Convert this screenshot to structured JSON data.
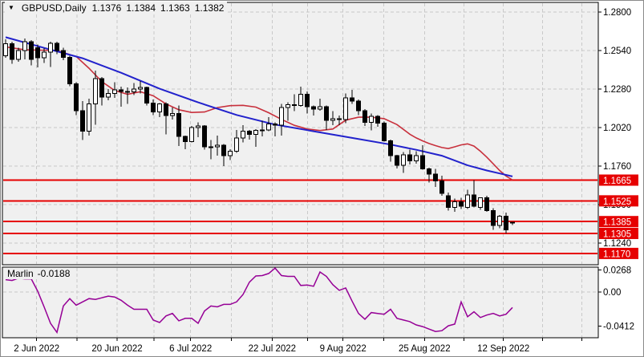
{
  "title_bar": {
    "collapse_icon": "▼",
    "symbol": "GBPUSD,Daily",
    "open": "1.1376",
    "high": "1.1384",
    "low": "1.1363",
    "close": "1.1382"
  },
  "indicator": {
    "name": "Marlin",
    "current_value": "-0.0188",
    "axis_labels": [
      "0.0268",
      "0.00",
      "-0.0412"
    ]
  },
  "colors": {
    "panel_bg": "#f0f0f0",
    "axis_bg": "#ffffff",
    "grid": "#c9c9c9",
    "border": "#000000",
    "text": "#000000",
    "candle_up_fill": "#ffffff",
    "candle_down_fill": "#000000",
    "candle_stroke": "#000000",
    "ma_slow_blue": "#2222cc",
    "ma_fast_red": "#c8303c",
    "level_line": "#e60000",
    "level_label_bg": "#e60000",
    "level_label_text": "#ffffff",
    "oscillator_line": "#960096"
  },
  "chart_data": {
    "type": "candlestick",
    "symbol": "GBPUSD",
    "timeframe": "Daily",
    "title": "GBPUSD,Daily  1.1376 1.1384 1.1363 1.1382",
    "grid": "dashed",
    "ylim": [
      1.114,
      1.287
    ],
    "y_tick_labels": [
      "1.2800",
      "1.2540",
      "1.2280",
      "1.2020",
      "1.1760",
      "1.1500",
      "1.1240"
    ],
    "x_tick_labels": [
      "2 Jun 2022",
      "20 Jun 2022",
      "6 Jul 2022",
      "22 Jul 2022",
      "9 Aug 2022",
      "25 Aug 2022",
      "12 Sep 2022"
    ],
    "support_resistance_levels": [
      "1.1665",
      "1.1525",
      "1.1385",
      "1.1305",
      "1.1170"
    ],
    "candles": [
      [
        1.2505,
        1.2615,
        1.249,
        1.2585
      ],
      [
        1.2585,
        1.26,
        1.245,
        1.248
      ],
      [
        1.248,
        1.256,
        1.2465,
        1.254
      ],
      [
        1.254,
        1.262,
        1.248,
        1.26
      ],
      [
        1.26,
        1.261,
        1.244,
        1.248
      ],
      [
        1.256,
        1.258,
        1.2425,
        1.249
      ],
      [
        1.249,
        1.2555,
        1.2455,
        1.253
      ],
      [
        1.253,
        1.26,
        1.243,
        1.259
      ],
      [
        1.259,
        1.26,
        1.2515,
        1.254
      ],
      [
        1.254,
        1.256,
        1.2475,
        1.2495
      ],
      [
        1.2495,
        1.2505,
        1.23,
        1.2315
      ],
      [
        1.2315,
        1.2325,
        1.2105,
        1.2135
      ],
      [
        1.2135,
        1.22,
        1.1935,
        1.1995
      ],
      [
        1.1995,
        1.2215,
        1.1965,
        1.218
      ],
      [
        1.218,
        1.2405,
        1.204,
        1.235
      ],
      [
        1.235,
        1.236,
        1.217,
        1.2225
      ],
      [
        1.2225,
        1.228,
        1.2205,
        1.225
      ],
      [
        1.225,
        1.2325,
        1.222,
        1.2275
      ],
      [
        1.2275,
        1.2295,
        1.216,
        1.2265
      ],
      [
        1.2265,
        1.229,
        1.218,
        1.226
      ],
      [
        1.226,
        1.232,
        1.224,
        1.228
      ],
      [
        1.228,
        1.2335,
        1.225,
        1.229
      ],
      [
        1.229,
        1.2295,
        1.217,
        1.2185
      ],
      [
        1.2185,
        1.221,
        1.2105,
        1.2125
      ],
      [
        1.2125,
        1.2185,
        1.209,
        1.218
      ],
      [
        1.218,
        1.219,
        1.1975,
        1.21
      ],
      [
        1.21,
        1.2155,
        1.2075,
        1.2115
      ],
      [
        1.2115,
        1.217,
        1.1895,
        1.196
      ],
      [
        1.196,
        1.1965,
        1.1875,
        1.1925
      ],
      [
        1.1925,
        1.203,
        1.192,
        1.202
      ],
      [
        1.202,
        1.2055,
        1.1955,
        1.203
      ],
      [
        1.203,
        1.2035,
        1.187,
        1.189
      ],
      [
        1.189,
        1.1935,
        1.1805,
        1.189
      ],
      [
        1.189,
        1.1965,
        1.183,
        1.19
      ],
      [
        1.19,
        1.191,
        1.176,
        1.183
      ],
      [
        1.183,
        1.1875,
        1.18,
        1.186
      ],
      [
        1.186,
        1.2005,
        1.185,
        1.195
      ],
      [
        1.195,
        1.2035,
        1.192,
        1.1995
      ],
      [
        1.1995,
        1.2005,
        1.194,
        1.1975
      ],
      [
        1.1975,
        1.201,
        1.189,
        1.2
      ],
      [
        1.2,
        1.2065,
        1.196,
        1.2005
      ],
      [
        1.2005,
        1.209,
        1.1995,
        1.2045
      ],
      [
        1.2045,
        1.2055,
        1.196,
        1.2035
      ],
      [
        1.2035,
        1.218,
        1.1965,
        1.2155
      ],
      [
        1.2155,
        1.219,
        1.2065,
        1.2175
      ],
      [
        1.2175,
        1.2245,
        1.213,
        1.217
      ],
      [
        1.217,
        1.2295,
        1.216,
        1.2245
      ],
      [
        1.2245,
        1.2265,
        1.2115,
        1.216
      ],
      [
        1.216,
        1.217,
        1.21,
        1.2145
      ],
      [
        1.2145,
        1.2215,
        1.2135,
        1.216
      ],
      [
        1.216,
        1.217,
        1.2005,
        1.207
      ],
      [
        1.207,
        1.213,
        1.2035,
        1.208
      ],
      [
        1.208,
        1.21,
        1.2035,
        1.2075
      ],
      [
        1.2075,
        1.225,
        1.205,
        1.222
      ],
      [
        1.222,
        1.2275,
        1.218,
        1.22
      ],
      [
        1.22,
        1.221,
        1.2105,
        1.2135
      ],
      [
        1.2135,
        1.2145,
        1.203,
        1.2055
      ],
      [
        1.2055,
        1.2115,
        1.2,
        1.2095
      ],
      [
        1.2095,
        1.2105,
        1.2025,
        1.205
      ],
      [
        1.205,
        1.206,
        1.1925,
        1.193
      ],
      [
        1.193,
        1.194,
        1.179,
        1.183
      ],
      [
        1.183,
        1.1835,
        1.1745,
        1.1765
      ],
      [
        1.1765,
        1.1855,
        1.1715,
        1.1835
      ],
      [
        1.1835,
        1.187,
        1.177,
        1.1795
      ],
      [
        1.1795,
        1.186,
        1.1775,
        1.183
      ],
      [
        1.183,
        1.19,
        1.1735,
        1.174
      ],
      [
        1.174,
        1.175,
        1.165,
        1.1705
      ],
      [
        1.1705,
        1.174,
        1.162,
        1.166
      ],
      [
        1.166,
        1.1695,
        1.156,
        1.1575
      ],
      [
        1.156,
        1.158,
        1.146,
        1.148
      ],
      [
        1.148,
        1.154,
        1.145,
        1.152
      ],
      [
        1.152,
        1.1545,
        1.147,
        1.149
      ],
      [
        1.148,
        1.16,
        1.147,
        1.1565
      ],
      [
        1.1565,
        1.1665,
        1.148,
        1.149
      ],
      [
        1.148,
        1.155,
        1.1465,
        1.1545
      ],
      [
        1.1545,
        1.156,
        1.145,
        1.146
      ],
      [
        1.146,
        1.1475,
        1.133,
        1.136
      ],
      [
        1.136,
        1.143,
        1.134,
        1.142
      ],
      [
        1.142,
        1.1445,
        1.1305,
        1.133
      ],
      [
        1.1376,
        1.1384,
        1.1363,
        1.1382
      ]
    ],
    "series": [
      {
        "name": "MA slow (blue)",
        "points": [
          [
            0,
            1.263
          ],
          [
            6,
            1.2558
          ],
          [
            12,
            1.2488
          ],
          [
            18,
            1.239
          ],
          [
            24,
            1.2282
          ],
          [
            30,
            1.219
          ],
          [
            36,
            1.2105
          ],
          [
            42,
            1.204
          ],
          [
            48,
            1.1995
          ],
          [
            54,
            1.195
          ],
          [
            60,
            1.1905
          ],
          [
            64,
            1.187
          ],
          [
            68,
            1.183
          ],
          [
            72,
            1.1765
          ],
          [
            75,
            1.173
          ],
          [
            77,
            1.171
          ],
          [
            79,
            1.169
          ]
        ]
      },
      {
        "name": "MA fast (red)",
        "points": [
          [
            0,
            1.2565
          ],
          [
            3,
            1.2545
          ],
          [
            8,
            1.254
          ],
          [
            11,
            1.25
          ],
          [
            13,
            1.242
          ],
          [
            15,
            1.233
          ],
          [
            17,
            1.227
          ],
          [
            19,
            1.2245
          ],
          [
            21,
            1.2262
          ],
          [
            23,
            1.2235
          ],
          [
            25,
            1.218
          ],
          [
            27,
            1.214
          ],
          [
            29,
            1.2122
          ],
          [
            31,
            1.2125
          ],
          [
            33,
            1.2155
          ],
          [
            35,
            1.2168
          ],
          [
            37,
            1.217
          ],
          [
            39,
            1.2158
          ],
          [
            41,
            1.212
          ],
          [
            43,
            1.2075
          ],
          [
            45,
            1.2035
          ],
          [
            47,
            1.201
          ],
          [
            49,
            1.2
          ],
          [
            51,
            1.201
          ],
          [
            53,
            1.207
          ],
          [
            55,
            1.209
          ],
          [
            57,
            1.209
          ],
          [
            59,
            1.208
          ],
          [
            61,
            1.204
          ],
          [
            63,
            1.1975
          ],
          [
            64,
            1.195
          ],
          [
            65,
            1.193
          ],
          [
            66,
            1.1912
          ],
          [
            67,
            1.1898
          ],
          [
            68,
            1.1885
          ],
          [
            69,
            1.1878
          ],
          [
            70,
            1.189
          ],
          [
            71,
            1.1903
          ],
          [
            72,
            1.191
          ],
          [
            73,
            1.1895
          ],
          [
            74,
            1.186
          ],
          [
            75,
            1.182
          ],
          [
            76,
            1.1775
          ],
          [
            77,
            1.173
          ],
          [
            78,
            1.1692
          ],
          [
            79,
            1.1666
          ]
        ]
      }
    ],
    "oscillator": {
      "name": "Marlin",
      "current_value": -0.0188,
      "axis_ticks": [
        0.0268,
        0.0,
        -0.0412
      ],
      "values": [
        0.015,
        0.014,
        0.0168,
        0.016,
        0.016,
        0.001,
        -0.018,
        -0.038,
        -0.049,
        -0.017,
        -0.008,
        -0.016,
        -0.012,
        -0.008,
        -0.009,
        -0.007,
        -0.005,
        -0.006,
        -0.01,
        -0.016,
        -0.021,
        -0.021,
        -0.021,
        -0.034,
        -0.037,
        -0.029,
        -0.026,
        -0.035,
        -0.032,
        -0.032,
        -0.038,
        -0.023,
        -0.017,
        -0.018,
        -0.015,
        -0.015,
        -0.012,
        -0.003,
        0.012,
        0.0195,
        0.02,
        0.0225,
        0.029,
        0.02,
        0.019,
        0.019,
        0.008,
        0.0085,
        0.007,
        0.0244,
        0.019,
        0.009,
        0.002,
        0.005,
        -0.011,
        -0.026,
        -0.033,
        -0.025,
        -0.026,
        -0.027,
        -0.021,
        -0.032,
        -0.034,
        -0.036,
        -0.04,
        -0.042,
        -0.045,
        -0.048,
        -0.047,
        -0.041,
        -0.039,
        -0.012,
        -0.03,
        -0.024,
        -0.031,
        -0.028,
        -0.026,
        -0.029,
        -0.027,
        -0.0188
      ]
    }
  }
}
